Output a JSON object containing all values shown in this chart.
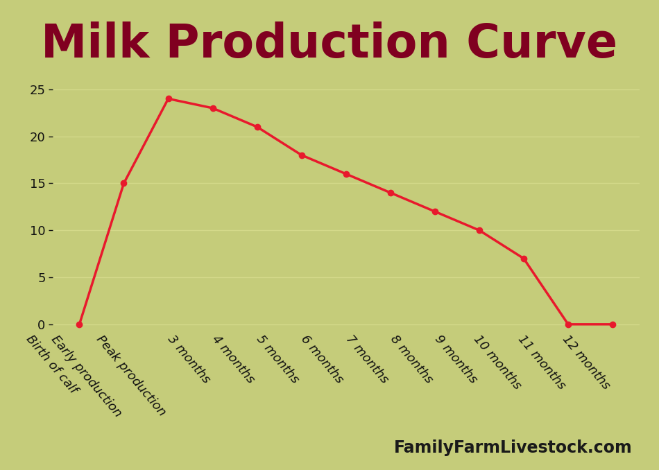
{
  "title": "Milk Production Curve",
  "title_color": "#800020",
  "title_fontsize": 48,
  "title_fontweight": "bold",
  "background_color": "#c5cc7a",
  "line_color": "#e8192c",
  "marker_color": "#e8192c",
  "categories": [
    "Birth of calf",
    "Early production",
    "Peak production",
    "3 months",
    "4 months",
    "5 months",
    "6 months",
    "7 months",
    "8 months",
    "9 months",
    "10 months",
    "11 months",
    "12 months"
  ],
  "values": [
    0,
    15,
    24,
    23,
    21,
    18,
    16,
    14,
    12,
    10,
    7,
    0,
    0
  ],
  "ylim": [
    -0.5,
    27
  ],
  "yticks": [
    0,
    5,
    10,
    15,
    20,
    25
  ],
  "grid_color": "#d4d98a",
  "line_width": 2.5,
  "marker_size": 6,
  "watermark": "FamilyFarmLivestock.com",
  "watermark_fontsize": 17,
  "watermark_color": "#1a1a1a",
  "tick_label_fontsize": 13,
  "tick_rotation": -50
}
